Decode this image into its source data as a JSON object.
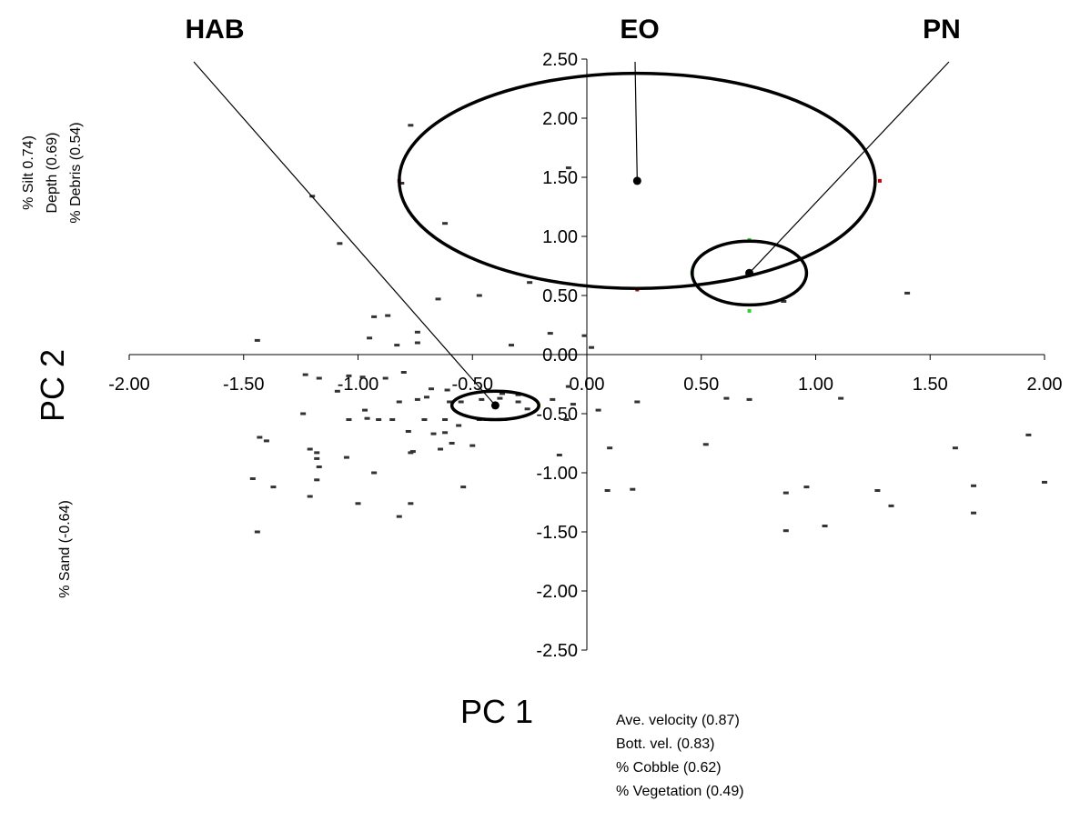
{
  "chart_data": {
    "type": "scatter",
    "xlabel": "PC 1",
    "ylabel": "PC 2",
    "xlim": [
      -2.0,
      2.0
    ],
    "ylim": [
      -2.5,
      2.5
    ],
    "x_ticks": [
      "-2.00",
      "-1.50",
      "-1.00",
      "-0.50",
      "0.00",
      "0.50",
      "1.00",
      "1.50",
      "2.00"
    ],
    "y_ticks": [
      "2.50",
      "2.00",
      "1.50",
      "1.00",
      "0.50",
      "0.00",
      "-0.50",
      "-1.00",
      "-1.50",
      "-2.00",
      "-2.50"
    ],
    "x_loadings": [
      "Ave. velocity (0.87)",
      "Bott. vel. (0.83)",
      "% Cobble (0.62)",
      "% Vegetation (0.49)"
    ],
    "y_loadings_positive": [
      "% Silt 0.74)",
      "Depth (0.69)",
      "% Debris (0.54)"
    ],
    "y_loadings_negative": [
      "% Sand (-0.64)"
    ],
    "groups": [
      {
        "name": "HAB",
        "centroid": [
          -0.4,
          -0.43
        ],
        "radii": [
          0.19,
          0.12
        ]
      },
      {
        "name": "EO",
        "centroid": [
          0.22,
          1.47
        ],
        "radii": [
          1.04,
          0.91
        ]
      },
      {
        "name": "PN",
        "centroid": [
          0.71,
          0.69
        ],
        "radii": [
          0.25,
          0.27
        ]
      }
    ],
    "colored_points": [
      {
        "x": -0.82,
        "y": 1.47,
        "color": "#cc0000"
      },
      {
        "x": 1.28,
        "y": 1.47,
        "color": "#cc0000"
      },
      {
        "x": 0.22,
        "y": 0.55,
        "color": "#cc0000"
      },
      {
        "x": 0.71,
        "y": 0.97,
        "color": "#33cc33"
      },
      {
        "x": 0.46,
        "y": 0.69,
        "color": "#33cc33"
      },
      {
        "x": 0.71,
        "y": 0.37,
        "color": "#33cc33"
      },
      {
        "x": -0.21,
        "y": -0.43,
        "color": "#e6e600"
      }
    ],
    "points": [
      [
        -0.77,
        1.94
      ],
      [
        -0.81,
        1.45
      ],
      [
        -1.2,
        1.34
      ],
      [
        -0.62,
        1.11
      ],
      [
        -1.08,
        0.94
      ],
      [
        -0.08,
        1.58
      ],
      [
        -0.65,
        0.47
      ],
      [
        -0.47,
        0.5
      ],
      [
        -0.25,
        0.61
      ],
      [
        -0.93,
        0.32
      ],
      [
        -0.87,
        0.33
      ],
      [
        -0.74,
        0.19
      ],
      [
        -1.44,
        0.12
      ],
      [
        -0.95,
        0.14
      ],
      [
        -0.74,
        0.1
      ],
      [
        -0.83,
        0.08
      ],
      [
        -0.33,
        0.08
      ],
      [
        -0.16,
        0.18
      ],
      [
        0.02,
        0.06
      ],
      [
        -0.01,
        0.16
      ],
      [
        -1.23,
        -0.17
      ],
      [
        -1.17,
        -0.2
      ],
      [
        -1.04,
        -0.18
      ],
      [
        -0.98,
        -0.19
      ],
      [
        -0.88,
        -0.2
      ],
      [
        -0.8,
        -0.15
      ],
      [
        -0.68,
        -0.29
      ],
      [
        -0.61,
        -0.3
      ],
      [
        -0.37,
        -0.33
      ],
      [
        -0.3,
        -0.34
      ],
      [
        -0.08,
        -0.27
      ],
      [
        -1.09,
        -0.31
      ],
      [
        -0.82,
        -0.4
      ],
      [
        -0.74,
        -0.38
      ],
      [
        -0.7,
        -0.36
      ],
      [
        -0.6,
        -0.4
      ],
      [
        -0.55,
        -0.4
      ],
      [
        -0.46,
        -0.38
      ],
      [
        -0.38,
        -0.37
      ],
      [
        -0.3,
        -0.4
      ],
      [
        -0.26,
        -0.46
      ],
      [
        -0.15,
        -0.38
      ],
      [
        -0.06,
        -0.42
      ],
      [
        -1.24,
        -0.5
      ],
      [
        -1.04,
        -0.55
      ],
      [
        -0.97,
        -0.47
      ],
      [
        -0.96,
        -0.54
      ],
      [
        -0.91,
        -0.55
      ],
      [
        -0.85,
        -0.55
      ],
      [
        -0.71,
        -0.55
      ],
      [
        -0.62,
        -0.55
      ],
      [
        -0.56,
        -0.6
      ],
      [
        -0.78,
        -0.65
      ],
      [
        -0.67,
        -0.67
      ],
      [
        -0.62,
        -0.66
      ],
      [
        -0.47,
        -0.55
      ],
      [
        -0.44,
        -0.55
      ],
      [
        -0.36,
        -0.55
      ],
      [
        -0.09,
        -0.55
      ],
      [
        0.05,
        -0.47
      ],
      [
        -1.43,
        -0.7
      ],
      [
        -1.4,
        -0.73
      ],
      [
        -1.21,
        -0.8
      ],
      [
        -1.18,
        -0.83
      ],
      [
        -1.18,
        -0.88
      ],
      [
        -1.05,
        -0.87
      ],
      [
        -0.76,
        -0.82
      ],
      [
        -0.77,
        -0.83
      ],
      [
        -0.64,
        -0.8
      ],
      [
        -0.59,
        -0.75
      ],
      [
        -0.5,
        -0.77
      ],
      [
        -0.12,
        -0.85
      ],
      [
        -1.17,
        -0.95
      ],
      [
        -1.46,
        -1.05
      ],
      [
        -0.93,
        -1.0
      ],
      [
        -1.18,
        -1.06
      ],
      [
        -0.54,
        -1.12
      ],
      [
        -1.37,
        -1.12
      ],
      [
        -1.21,
        -1.2
      ],
      [
        -1.0,
        -1.26
      ],
      [
        -0.77,
        -1.26
      ],
      [
        -0.82,
        -1.37
      ],
      [
        -1.44,
        -1.5
      ],
      [
        0.1,
        -0.79
      ],
      [
        0.09,
        -1.15
      ],
      [
        0.2,
        -1.14
      ],
      [
        0.52,
        -0.76
      ],
      [
        0.87,
        -1.17
      ],
      [
        0.96,
        -1.12
      ],
      [
        0.87,
        -1.49
      ],
      [
        1.04,
        -1.45
      ],
      [
        1.27,
        -1.15
      ],
      [
        1.33,
        -1.28
      ],
      [
        1.61,
        -0.79
      ],
      [
        1.69,
        -1.11
      ],
      [
        1.69,
        -1.34
      ],
      [
        1.93,
        -0.68
      ],
      [
        2.0,
        -1.08
      ],
      [
        0.71,
        -0.38
      ],
      [
        0.61,
        -0.37
      ],
      [
        0.22,
        -0.4
      ],
      [
        1.11,
        -0.37
      ],
      [
        1.4,
        0.52
      ],
      [
        0.86,
        0.45
      ]
    ]
  }
}
